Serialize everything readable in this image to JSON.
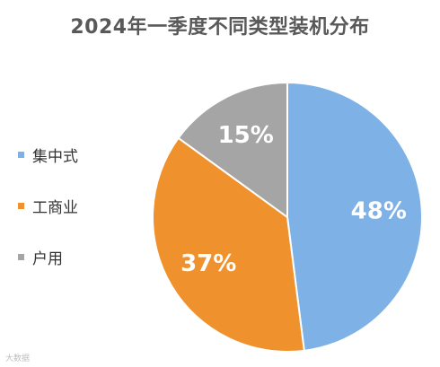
{
  "chart_data": {
    "type": "pie",
    "title": "2024年一季度不同类型装机分布",
    "slices": [
      {
        "label": "集中式",
        "value": 48,
        "display": "48%",
        "color": "#7eb1e6"
      },
      {
        "label": "工商业",
        "value": 37,
        "display": "37%",
        "color": "#ef922e"
      },
      {
        "label": "户用",
        "value": 15,
        "display": "15%",
        "color": "#a5a5a5"
      }
    ],
    "legend_position": "left"
  },
  "watermark": "大数据"
}
